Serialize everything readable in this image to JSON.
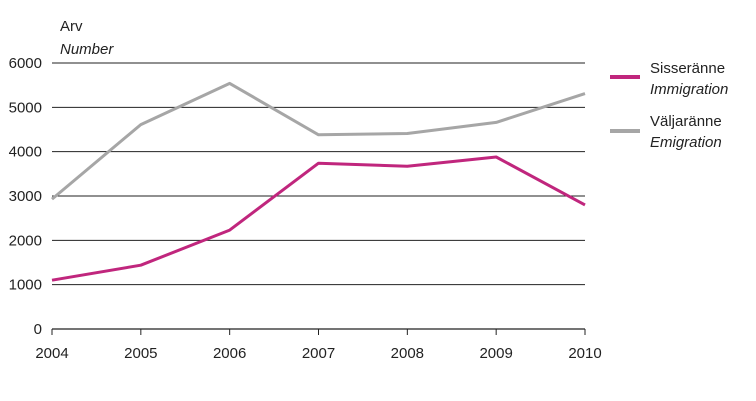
{
  "chart_data": {
    "type": "line",
    "ylabel": "Arv",
    "ylabel_en": "Number",
    "xlabel": "",
    "x": [
      "2004",
      "2005",
      "2006",
      "2007",
      "2008",
      "2009",
      "2010"
    ],
    "ylim": [
      0,
      6000
    ],
    "yticks": [
      0,
      1000,
      2000,
      3000,
      4000,
      5000,
      6000
    ],
    "grid": true,
    "legend_position": "right",
    "series": [
      {
        "name": "Sisseränne",
        "name_en": "Immigration",
        "color": "#c0267d",
        "values": [
          1100,
          1440,
          2230,
          3740,
          3670,
          3880,
          2800
        ]
      },
      {
        "name": "Väljaränne",
        "name_en": "Emigration",
        "color": "#a6a6a6",
        "values": [
          2930,
          4610,
          5540,
          4380,
          4410,
          4660,
          5310
        ]
      }
    ]
  }
}
